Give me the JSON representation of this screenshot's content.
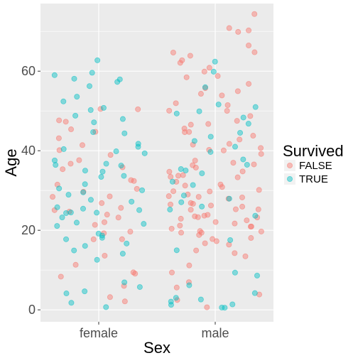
{
  "chart_data": {
    "type": "scatter",
    "jitter": true,
    "xlabel": "Sex",
    "ylabel": "Age",
    "categories": [
      "female",
      "male"
    ],
    "y_ticks": [
      0,
      20,
      40,
      60
    ],
    "ylim": [
      -3,
      77
    ],
    "grid": true,
    "legend": {
      "title": "Survived",
      "position": "right",
      "entries": [
        {
          "label": "FALSE",
          "color": "#F8766D"
        },
        {
          "label": "TRUE",
          "color": "#00BFC4"
        }
      ]
    },
    "series": [
      {
        "name": "FALSE",
        "color": "#F8766D",
        "points": [
          [
            "female",
            2
          ],
          [
            "female",
            3
          ],
          [
            "female",
            6
          ],
          [
            "female",
            8
          ],
          [
            "female",
            9
          ],
          [
            "female",
            9
          ],
          [
            "female",
            11
          ],
          [
            "female",
            14
          ],
          [
            "female",
            18
          ],
          [
            "female",
            18
          ],
          [
            "female",
            19
          ],
          [
            "female",
            20
          ],
          [
            "female",
            21
          ],
          [
            "female",
            22
          ],
          [
            "female",
            23
          ],
          [
            "female",
            24
          ],
          [
            "female",
            25
          ],
          [
            "female",
            25
          ],
          [
            "female",
            26
          ],
          [
            "female",
            27
          ],
          [
            "female",
            28
          ],
          [
            "female",
            29
          ],
          [
            "female",
            30
          ],
          [
            "female",
            30
          ],
          [
            "female",
            31
          ],
          [
            "female",
            32
          ],
          [
            "female",
            33
          ],
          [
            "female",
            35
          ],
          [
            "female",
            36
          ],
          [
            "female",
            37
          ],
          [
            "female",
            38
          ],
          [
            "female",
            39
          ],
          [
            "female",
            40
          ],
          [
            "female",
            41
          ],
          [
            "female",
            43
          ],
          [
            "female",
            45
          ],
          [
            "female",
            45
          ],
          [
            "female",
            47
          ],
          [
            "female",
            48
          ],
          [
            "female",
            50
          ],
          [
            "female",
            50
          ],
          [
            "male",
            1
          ],
          [
            "male",
            2
          ],
          [
            "male",
            4
          ],
          [
            "male",
            6
          ],
          [
            "male",
            7
          ],
          [
            "male",
            9
          ],
          [
            "male",
            11
          ],
          [
            "male",
            13
          ],
          [
            "male",
            14
          ],
          [
            "male",
            15
          ],
          [
            "male",
            16
          ],
          [
            "male",
            17
          ],
          [
            "male",
            17
          ],
          [
            "male",
            18
          ],
          [
            "male",
            18
          ],
          [
            "male",
            19
          ],
          [
            "male",
            19
          ],
          [
            "male",
            19
          ],
          [
            "male",
            20
          ],
          [
            "male",
            20
          ],
          [
            "male",
            20
          ],
          [
            "male",
            21
          ],
          [
            "male",
            21
          ],
          [
            "male",
            21
          ],
          [
            "male",
            22
          ],
          [
            "male",
            22
          ],
          [
            "male",
            22
          ],
          [
            "male",
            23
          ],
          [
            "male",
            23
          ],
          [
            "male",
            23
          ],
          [
            "male",
            24
          ],
          [
            "male",
            24
          ],
          [
            "male",
            24
          ],
          [
            "male",
            25
          ],
          [
            "male",
            25
          ],
          [
            "male",
            25
          ],
          [
            "male",
            26
          ],
          [
            "male",
            26
          ],
          [
            "male",
            26
          ],
          [
            "male",
            27
          ],
          [
            "male",
            27
          ],
          [
            "male",
            28
          ],
          [
            "male",
            28
          ],
          [
            "male",
            28
          ],
          [
            "male",
            29
          ],
          [
            "male",
            29
          ],
          [
            "male",
            30
          ],
          [
            "male",
            30
          ],
          [
            "male",
            30
          ],
          [
            "male",
            31
          ],
          [
            "male",
            31
          ],
          [
            "male",
            32
          ],
          [
            "male",
            32
          ],
          [
            "male",
            33
          ],
          [
            "male",
            33
          ],
          [
            "male",
            34
          ],
          [
            "male",
            34
          ],
          [
            "male",
            35
          ],
          [
            "male",
            35
          ],
          [
            "male",
            36
          ],
          [
            "male",
            36
          ],
          [
            "male",
            37
          ],
          [
            "male",
            37
          ],
          [
            "male",
            38
          ],
          [
            "male",
            39
          ],
          [
            "male",
            40
          ],
          [
            "male",
            40
          ],
          [
            "male",
            41
          ],
          [
            "male",
            42
          ],
          [
            "male",
            42
          ],
          [
            "male",
            43
          ],
          [
            "male",
            44
          ],
          [
            "male",
            45
          ],
          [
            "male",
            45
          ],
          [
            "male",
            46
          ],
          [
            "male",
            47
          ],
          [
            "male",
            47
          ],
          [
            "male",
            48
          ],
          [
            "male",
            49
          ],
          [
            "male",
            50
          ],
          [
            "male",
            50
          ],
          [
            "male",
            51
          ],
          [
            "male",
            52
          ],
          [
            "male",
            54
          ],
          [
            "male",
            54
          ],
          [
            "male",
            55
          ],
          [
            "male",
            56
          ],
          [
            "male",
            57
          ],
          [
            "male",
            58
          ],
          [
            "male",
            59
          ],
          [
            "male",
            60
          ],
          [
            "male",
            61
          ],
          [
            "male",
            62
          ],
          [
            "male",
            63
          ],
          [
            "male",
            64
          ],
          [
            "male",
            65
          ],
          [
            "male",
            65
          ],
          [
            "male",
            66
          ],
          [
            "male",
            70
          ],
          [
            "male",
            70
          ],
          [
            "male",
            71
          ],
          [
            "male",
            74
          ]
        ]
      },
      {
        "name": "TRUE",
        "color": "#00BFC4",
        "points": [
          [
            "female",
            1
          ],
          [
            "female",
            2
          ],
          [
            "female",
            4
          ],
          [
            "female",
            5
          ],
          [
            "female",
            6
          ],
          [
            "female",
            7
          ],
          [
            "female",
            13
          ],
          [
            "female",
            14
          ],
          [
            "female",
            15
          ],
          [
            "female",
            16
          ],
          [
            "female",
            17
          ],
          [
            "female",
            18
          ],
          [
            "female",
            18
          ],
          [
            "female",
            19
          ],
          [
            "female",
            19
          ],
          [
            "female",
            21
          ],
          [
            "female",
            22
          ],
          [
            "female",
            22
          ],
          [
            "female",
            23
          ],
          [
            "female",
            24
          ],
          [
            "female",
            24
          ],
          [
            "female",
            24
          ],
          [
            "female",
            25
          ],
          [
            "female",
            25
          ],
          [
            "female",
            26
          ],
          [
            "female",
            27
          ],
          [
            "female",
            28
          ],
          [
            "female",
            29
          ],
          [
            "female",
            30
          ],
          [
            "female",
            30
          ],
          [
            "female",
            31
          ],
          [
            "female",
            32
          ],
          [
            "female",
            33
          ],
          [
            "female",
            34
          ],
          [
            "female",
            35
          ],
          [
            "female",
            35
          ],
          [
            "female",
            36
          ],
          [
            "female",
            36
          ],
          [
            "female",
            37
          ],
          [
            "female",
            38
          ],
          [
            "female",
            39
          ],
          [
            "female",
            40
          ],
          [
            "female",
            40
          ],
          [
            "female",
            41
          ],
          [
            "female",
            42
          ],
          [
            "female",
            44
          ],
          [
            "female",
            45
          ],
          [
            "female",
            47
          ],
          [
            "female",
            48
          ],
          [
            "female",
            49
          ],
          [
            "female",
            50
          ],
          [
            "female",
            51
          ],
          [
            "female",
            52
          ],
          [
            "female",
            54
          ],
          [
            "female",
            56
          ],
          [
            "female",
            57
          ],
          [
            "female",
            58
          ],
          [
            "female",
            58
          ],
          [
            "female",
            59
          ],
          [
            "female",
            60
          ],
          [
            "female",
            63
          ],
          [
            "male",
            1
          ],
          [
            "male",
            1
          ],
          [
            "male",
            1
          ],
          [
            "male",
            1
          ],
          [
            "male",
            2
          ],
          [
            "male",
            3
          ],
          [
            "male",
            3
          ],
          [
            "male",
            4
          ],
          [
            "male",
            6
          ],
          [
            "male",
            9
          ],
          [
            "male",
            9
          ],
          [
            "male",
            15
          ],
          [
            "male",
            18
          ],
          [
            "male",
            24
          ],
          [
            "male",
            25
          ],
          [
            "male",
            26
          ],
          [
            "male",
            27
          ],
          [
            "male",
            28
          ],
          [
            "male",
            29
          ],
          [
            "male",
            31
          ],
          [
            "male",
            32
          ],
          [
            "male",
            34
          ],
          [
            "male",
            35
          ],
          [
            "male",
            35
          ],
          [
            "male",
            36
          ],
          [
            "male",
            38
          ],
          [
            "male",
            40
          ],
          [
            "male",
            41
          ],
          [
            "male",
            42
          ],
          [
            "male",
            44
          ],
          [
            "male",
            45
          ],
          [
            "male",
            47
          ],
          [
            "male",
            48
          ],
          [
            "male",
            49
          ],
          [
            "male",
            50
          ],
          [
            "male",
            51
          ],
          [
            "male",
            52
          ],
          [
            "male",
            56
          ],
          [
            "male",
            60
          ],
          [
            "male",
            62
          ]
        ]
      }
    ]
  }
}
